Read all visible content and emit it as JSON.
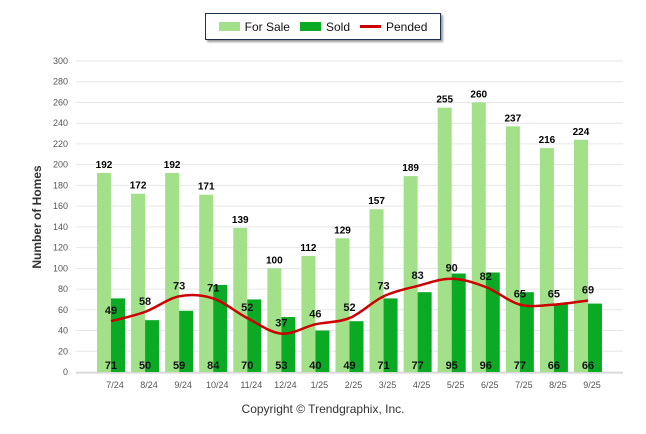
{
  "chart_data": {
    "type": "bar",
    "title": "",
    "xlabel": "",
    "ylabel": "Number of Homes",
    "ylim": [
      0,
      300
    ],
    "yticks": [
      0,
      20,
      40,
      60,
      80,
      100,
      120,
      140,
      160,
      180,
      200,
      220,
      240,
      260,
      280,
      300
    ],
    "grid": true,
    "legend_placement": "top-center",
    "categories": [
      "7/24",
      "8/24",
      "9/24",
      "10/24",
      "11/24",
      "12/24",
      "1/25",
      "2/25",
      "3/25",
      "4/25",
      "5/25",
      "6/25",
      "7/25",
      "8/25",
      "9/25"
    ],
    "series": [
      {
        "name": "For Sale",
        "type": "bar",
        "color": "#a3e08a",
        "values": [
          192,
          172,
          192,
          171,
          139,
          100,
          112,
          129,
          157,
          189,
          255,
          260,
          237,
          216,
          224
        ]
      },
      {
        "name": "Sold",
        "type": "bar",
        "color": "#0aaa24",
        "values": [
          71,
          50,
          59,
          84,
          70,
          53,
          40,
          49,
          71,
          77,
          95,
          96,
          77,
          66,
          66
        ]
      },
      {
        "name": "Pended",
        "type": "line",
        "color": "#cc0000",
        "values": [
          49,
          58,
          73,
          71,
          52,
          37,
          46,
          52,
          73,
          83,
          90,
          82,
          65,
          65,
          69
        ]
      }
    ]
  },
  "copyright": "Copyright © Trendgraphix, Inc."
}
